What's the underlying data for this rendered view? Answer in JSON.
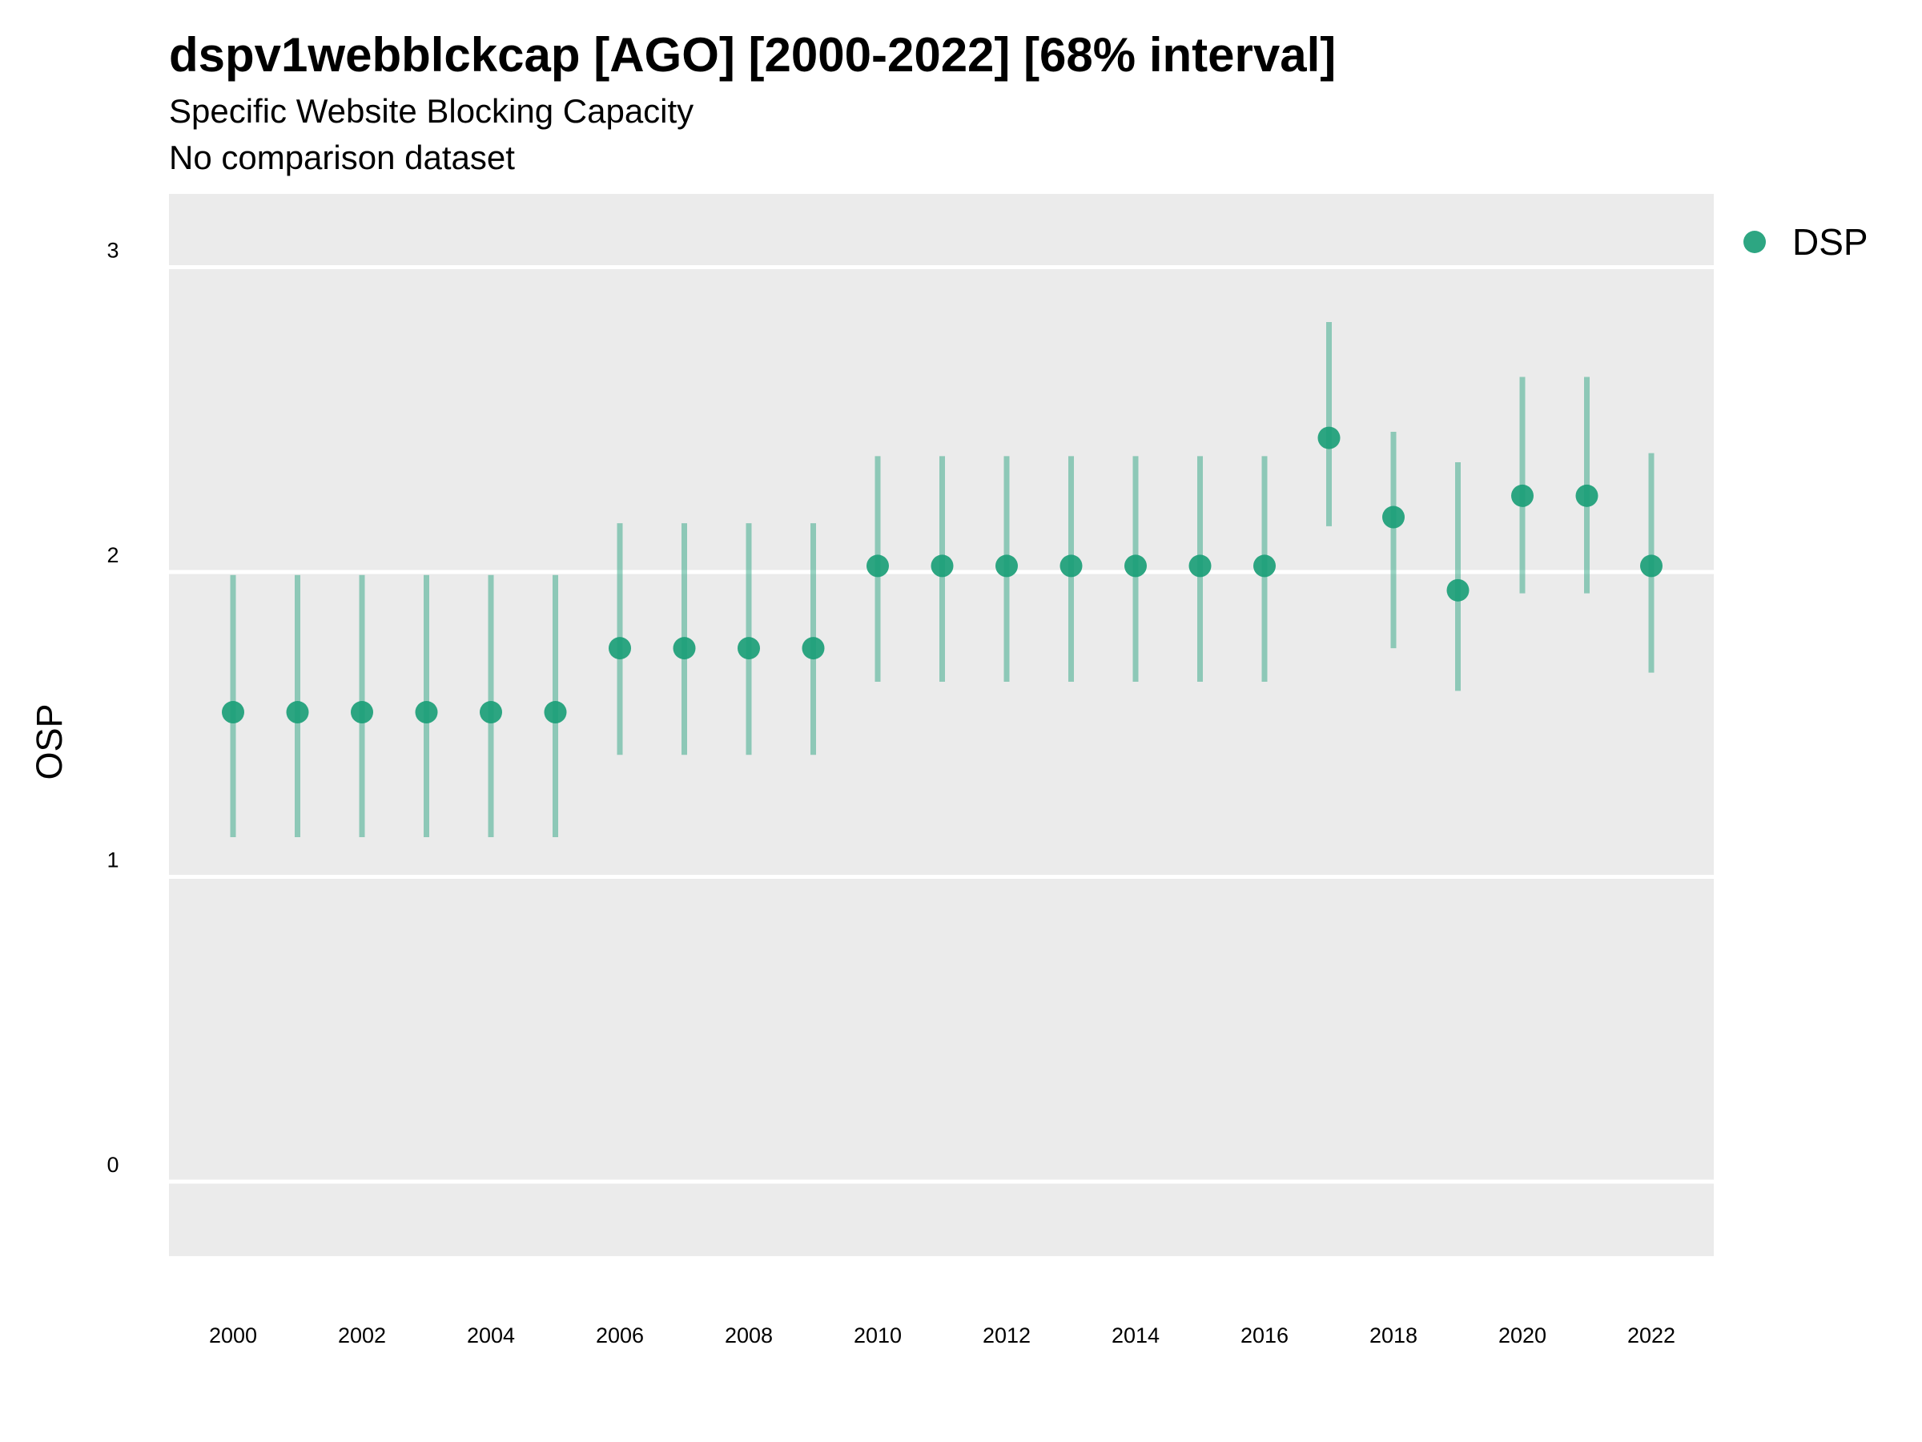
{
  "title": "dspv1webblckcap [AGO] [2000-2022] [68% interval]",
  "subtitle": "Specific Website Blocking Capacity",
  "caption": "No comparison dataset",
  "chart_data": {
    "type": "scatter",
    "title": "dspv1webblckcap [AGO] [2000-2022] [68% interval]",
    "subtitle": "Specific Website Blocking Capacity",
    "caption": "No comparison dataset",
    "xlabel": "",
    "ylabel": "OSP",
    "ylim": [
      -0.25,
      3.25
    ],
    "yticks": [
      0,
      1,
      2,
      3
    ],
    "xticks": [
      2000,
      2002,
      2004,
      2006,
      2008,
      2010,
      2012,
      2014,
      2016,
      2018,
      2020,
      2022
    ],
    "grid": true,
    "legend_position": "right",
    "series": [
      {
        "name": "DSP",
        "color": "#1b9e77",
        "x": [
          2000,
          2001,
          2002,
          2003,
          2004,
          2005,
          2006,
          2007,
          2008,
          2009,
          2010,
          2011,
          2012,
          2013,
          2014,
          2015,
          2016,
          2017,
          2018,
          2019,
          2020,
          2021,
          2022
        ],
        "y": [
          1.54,
          1.54,
          1.54,
          1.54,
          1.54,
          1.54,
          1.75,
          1.75,
          1.75,
          1.75,
          2.02,
          2.02,
          2.02,
          2.02,
          2.02,
          2.02,
          2.02,
          2.44,
          2.18,
          1.94,
          2.25,
          2.25,
          2.02
        ],
        "lower": [
          1.13,
          1.13,
          1.13,
          1.13,
          1.13,
          1.13,
          1.4,
          1.4,
          1.4,
          1.4,
          1.64,
          1.64,
          1.64,
          1.64,
          1.64,
          1.64,
          1.64,
          2.15,
          1.75,
          1.61,
          1.93,
          1.93,
          1.67
        ],
        "upper": [
          1.99,
          1.99,
          1.99,
          1.99,
          1.99,
          1.99,
          2.16,
          2.16,
          2.16,
          2.16,
          2.38,
          2.38,
          2.38,
          2.38,
          2.38,
          2.38,
          2.38,
          2.82,
          2.46,
          2.36,
          2.64,
          2.64,
          2.39
        ]
      }
    ]
  }
}
